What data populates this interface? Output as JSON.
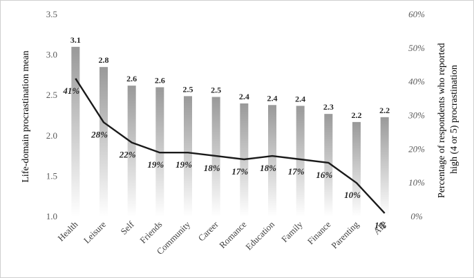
{
  "chart_data": {
    "type": "bar",
    "categories": [
      "Health",
      "Leisure",
      "Self",
      "Friends",
      "Community",
      "Career",
      "Romance",
      "Education",
      "Family",
      "Finance",
      "Parenting",
      "AIP"
    ],
    "series": [
      {
        "type": "bar",
        "axis": "left",
        "values": [
          3.1,
          2.85,
          2.62,
          2.6,
          2.49,
          2.48,
          2.4,
          2.38,
          2.37,
          2.27,
          2.17,
          2.23
        ],
        "data_labels": [
          "3.1",
          "2.8",
          "2.6",
          "2.6",
          "2.5",
          "2.5",
          "2.4",
          "2.4",
          "2.4",
          "2.3",
          "2.2",
          "2.2"
        ],
        "color": "#9a9a9a"
      },
      {
        "type": "line",
        "axis": "right",
        "values": [
          41,
          28,
          22,
          19,
          19,
          18,
          17,
          18,
          17,
          16,
          10,
          1
        ],
        "data_labels": [
          "41%",
          "28%",
          "22%",
          "19%",
          "19%",
          "18%",
          "17%",
          "18%",
          "17%",
          "16%",
          "10%",
          "1%"
        ],
        "color": "#1a1a1a"
      }
    ],
    "ylabel": "Life-domain procrastination mean",
    "ylabel_right": [
      "Percentage of respondents who reported",
      "high (4 or 5) procrastination"
    ],
    "ylim": [
      1.0,
      3.5
    ],
    "ylim_right": [
      0,
      60
    ],
    "y_ticks": [
      "1.0",
      "1.5",
      "2.0",
      "2.5",
      "3.0",
      "3.5"
    ],
    "y_ticks_right": [
      "0%",
      "10%",
      "20%",
      "30%",
      "40%",
      "50%",
      "60%"
    ],
    "grid": false,
    "legend": "none"
  }
}
